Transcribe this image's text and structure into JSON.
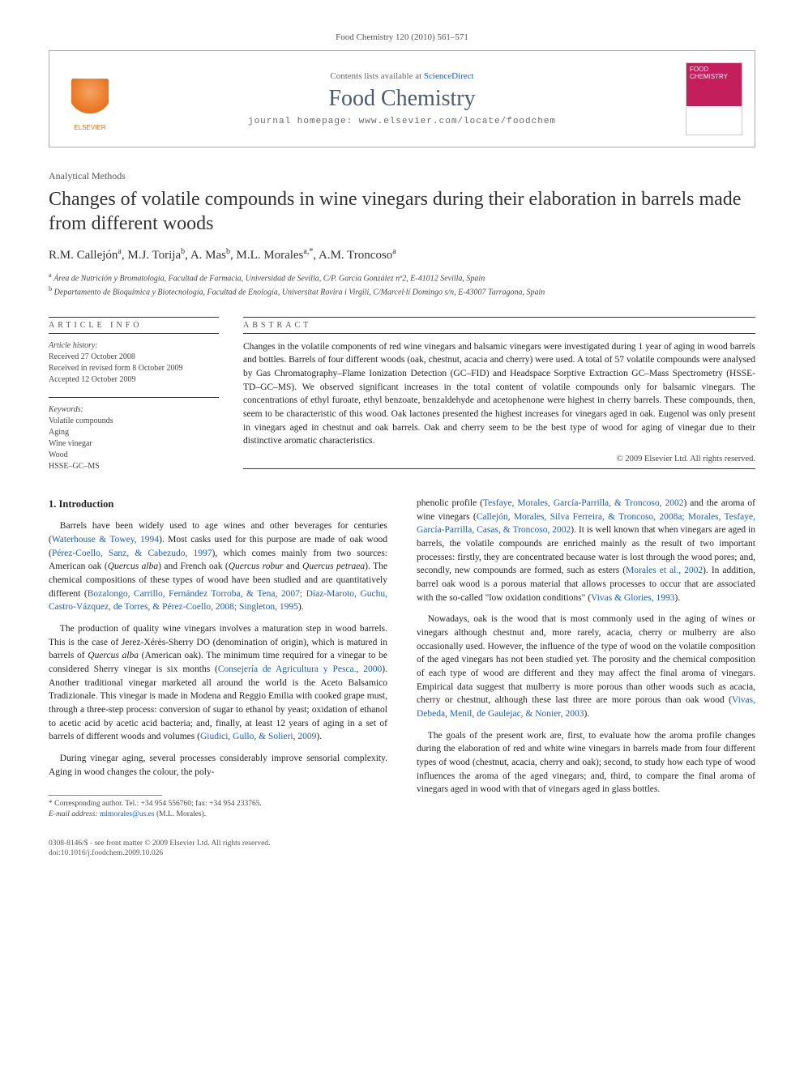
{
  "journal_citation": "Food Chemistry 120 (2010) 561–571",
  "header": {
    "contents_prefix": "Contents lists available at ",
    "contents_link": "ScienceDirect",
    "journal_name": "Food Chemistry",
    "homepage_prefix": "journal homepage: ",
    "homepage_url": "www.elsevier.com/locate/foodchem",
    "publisher_logo_text": "ELSEVIER",
    "cover_text_1": "FOOD",
    "cover_text_2": "CHEMISTRY"
  },
  "article": {
    "section_type": "Analytical Methods",
    "title": "Changes of volatile compounds in wine vinegars during their elaboration in barrels made from different woods",
    "authors_html": "R.M. Callejón<sup>a</sup>, M.J. Torija<sup>b</sup>, A. Mas<sup>b</sup>, M.L. Morales<sup>a,*</sup>, A.M. Troncoso<sup>a</sup>",
    "affiliations": [
      {
        "sup": "a",
        "text": "Área de Nutrición y Bromatología, Facultad de Farmacia, Universidad de Sevilla, C/P. García González nº2, E-41012 Sevilla, Spain"
      },
      {
        "sup": "b",
        "text": "Departamento de Bioquímica y Biotecnología, Facultad de Enología, Universitat Rovira i Virgili, C/Marcel·lí Domingo s/n, E-43007 Tarragona, Spain"
      }
    ]
  },
  "info": {
    "heading": "ARTICLE INFO",
    "history_label": "Article history:",
    "history": [
      "Received 27 October 2008",
      "Received in revised form 8 October 2009",
      "Accepted 12 October 2009"
    ],
    "keywords_label": "Keywords:",
    "keywords": [
      "Volatile compounds",
      "Aging",
      "Wine vinegar",
      "Wood",
      "HSSE–GC–MS"
    ]
  },
  "abstract": {
    "heading": "ABSTRACT",
    "text": "Changes in the volatile components of red wine vinegars and balsamic vinegars were investigated during 1 year of aging in wood barrels and bottles. Barrels of four different woods (oak, chestnut, acacia and cherry) were used. A total of 57 volatile compounds were analysed by Gas Chromatography–Flame Ionization Detection (GC–FID) and Headspace Sorptive Extraction GC–Mass Spectrometry (HSSE-TD–GC–MS). We observed significant increases in the total content of volatile compounds only for balsamic vinegars. The concentrations of ethyl furoate, ethyl benzoate, benzaldehyde and acetophenone were highest in cherry barrels. These compounds, then, seem to be characteristic of this wood. Oak lactones presented the highest increases for vinegars aged in oak. Eugenol was only present in vinegars aged in chestnut and oak barrels. Oak and cherry seem to be the best type of wood for aging of vinegar due to their distinctive aromatic characteristics.",
    "copyright": "© 2009 Elsevier Ltd. All rights reserved."
  },
  "body": {
    "section_heading": "1. Introduction",
    "left_paragraphs": [
      "Barrels have been widely used to age wines and other beverages for centuries (<a class='cite' href='#'>Waterhouse & Towey, 1994</a>). Most casks used for this purpose are made of oak wood (<a class='cite' href='#'>Pérez-Coello, Sanz, & Cabezudo, 1997</a>), which comes mainly from two sources: American oak (<i>Quercus alba</i>) and French oak (<i>Quercus robur</i> and <i>Quercus petraea</i>). The chemical compositions of these types of wood have been studied and are quantitatively different (<a class='cite' href='#'>Bozalongo, Carrillo, Fernández Torroba, & Tena, 2007; Díaz-Maroto, Guchu, Castro-Vázquez, de Torres, & Pérez-Coello, 2008; Singleton, 1995</a>).",
      "The production of quality wine vinegars involves a maturation step in wood barrels. This is the case of Jerez-Xérès-Sherry DO (denomination of origin), which is matured in barrels of <i>Quercus alba</i> (American oak). The minimum time required for a vinegar to be considered Sherry vinegar is six months (<a class='cite' href='#'>Consejería de Agricultura y Pesca., 2000</a>). Another traditional vinegar marketed all around the world is the Aceto Balsamico Tradizionale. This vinegar is made in Modena and Reggio Emilia with cooked grape must, through a three-step process: conversion of sugar to ethanol by yeast; oxidation of ethanol to acetic acid by acetic acid bacteria; and, finally, at least 12 years of aging in a set of barrels of different woods and volumes (<a class='cite' href='#'>Giudici, Gullo, & Solieri, 2009</a>).",
      "During vinegar aging, several processes considerably improve sensorial complexity. Aging in wood changes the colour, the poly-"
    ],
    "right_paragraphs": [
      "phenolic profile (<a class='cite' href='#'>Tesfaye, Morales, García-Parrilla, & Troncoso, 2002</a>) and the aroma of wine vinegars (<a class='cite' href='#'>Callejón, Morales, Silva Ferreira, & Troncoso, 2008a; Morales, Tesfaye, García-Parrilla, Casas, & Troncoso, 2002</a>). It is well known that when vinegars are aged in barrels, the volatile compounds are enriched mainly as the result of two important processes: firstly, they are concentrated because water is lost through the wood pores; and, secondly, new compounds are formed, such as esters (<a class='cite' href='#'>Morales et al., 2002</a>). In addition, barrel oak wood is a porous material that allows processes to occur that are associated with the so-called \"low oxidation conditions\" (<a class='cite' href='#'>Vivas & Glories, 1993</a>).",
      "Nowadays, oak is the wood that is most commonly used in the aging of wines or vinegars although chestnut and, more rarely, acacia, cherry or mulberry are also occasionally used. However, the influence of the type of wood on the volatile composition of the aged vinegars has not been studied yet. The porosity and the chemical composition of each type of wood are different and they may affect the final aroma of vinegars. Empirical data suggest that mulberry is more porous than other woods such as acacia, cherry or chestnut, although these last three are more porous than oak wood (<a class='cite' href='#'>Vivas, Debeda, Menil, de Gaulejac, & Nonier, 2003</a>).",
      "The goals of the present work are, first, to evaluate how the aroma profile changes during the elaboration of red and white wine vinegars in barrels made from four different types of wood (chestnut, acacia, cherry and oak); second, to study how each type of wood influences the aroma of the aged vinegars; and, third, to compare the final aroma of vinegars aged in wood with that of vinegars aged in glass bottles."
    ]
  },
  "footnote": {
    "corresponding": "* Corresponding author. Tel.: +34 954 556760; fax: +34 954 233765.",
    "email_label": "E-mail address:",
    "email": "mlmorales@us.es",
    "email_suffix": "(M.L. Morales)."
  },
  "footer": {
    "line1": "0308-8146/$ - see front matter © 2009 Elsevier Ltd. All rights reserved.",
    "line2": "doi:10.1016/j.foodchem.2009.10.026"
  }
}
